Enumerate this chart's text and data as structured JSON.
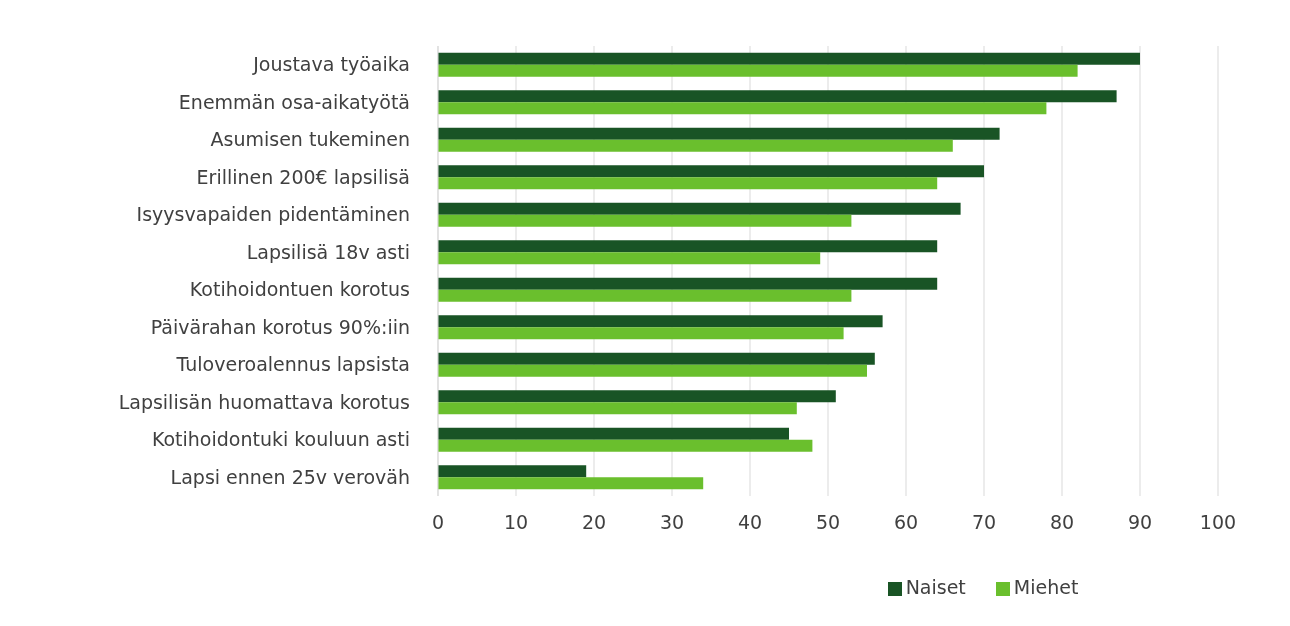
{
  "chart_data": {
    "type": "bar",
    "orientation": "horizontal",
    "categories": [
      "Joustava työaika",
      "Enemmän osa-aikatyötä",
      "Asumisen tukeminen",
      "Erillinen 200€ lapsilisä",
      "Isyysvapaiden pidentäminen",
      "Lapsilisä 18v asti",
      "Kotihoidontuen korotus",
      "Päivärahan korotus 90%:iin",
      "Tuloveroalennus lapsista",
      "Lapsilisän huomattava korotus",
      "Kotihoidontuki kouluun asti",
      "Lapsi ennen 25v veroväh"
    ],
    "series": [
      {
        "name": "Naiset",
        "color": "#195425",
        "values": [
          90,
          87,
          72,
          70,
          67,
          64,
          64,
          57,
          56,
          51,
          45,
          19
        ]
      },
      {
        "name": "Miehet",
        "color": "#6abf2d",
        "values": [
          82,
          78,
          66,
          64,
          53,
          49,
          53,
          52,
          55,
          46,
          48,
          34
        ]
      }
    ],
    "xlim": [
      0,
      100
    ],
    "xticks": [
      0,
      10,
      20,
      30,
      40,
      50,
      60,
      70,
      80,
      90,
      100
    ],
    "grid": "x",
    "legend": "bottom"
  }
}
